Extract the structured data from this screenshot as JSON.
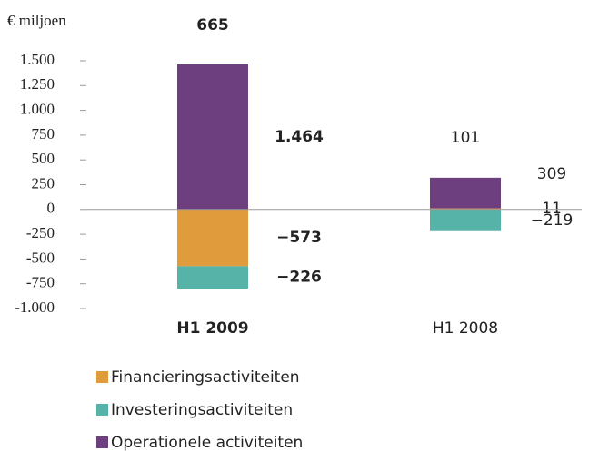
{
  "chart_data": {
    "type": "stacked-bar",
    "ylabel": "€ miljoen",
    "categories": [
      "H1 2009",
      "H1 2008"
    ],
    "series": [
      {
        "name": "Financieringsactiviteiten",
        "color": "#e09b3d",
        "values": [
          -573,
          11
        ],
        "value_labels": [
          "−573",
          "11"
        ]
      },
      {
        "name": "Investeringsactiviteiten",
        "color": "#56b3a8",
        "values": [
          -226,
          -219
        ],
        "value_labels": [
          "−226",
          "−219"
        ]
      },
      {
        "name": "Operationele activiteiten",
        "color": "#6e3f7f",
        "values": [
          1464,
          309
        ],
        "value_labels": [
          "1.464",
          "309"
        ]
      }
    ],
    "totals": [
      665,
      101
    ],
    "ylim": [
      -1000,
      1500
    ],
    "yticks": [
      {
        "value": 1500,
        "label": "1.500"
      },
      {
        "value": 1250,
        "label": "1.250"
      },
      {
        "value": 1000,
        "label": "1.000"
      },
      750,
      500,
      250,
      0,
      -250,
      -500,
      -750,
      {
        "value": -1000,
        "label": "-1.000"
      }
    ],
    "legend": "bottom-left"
  }
}
